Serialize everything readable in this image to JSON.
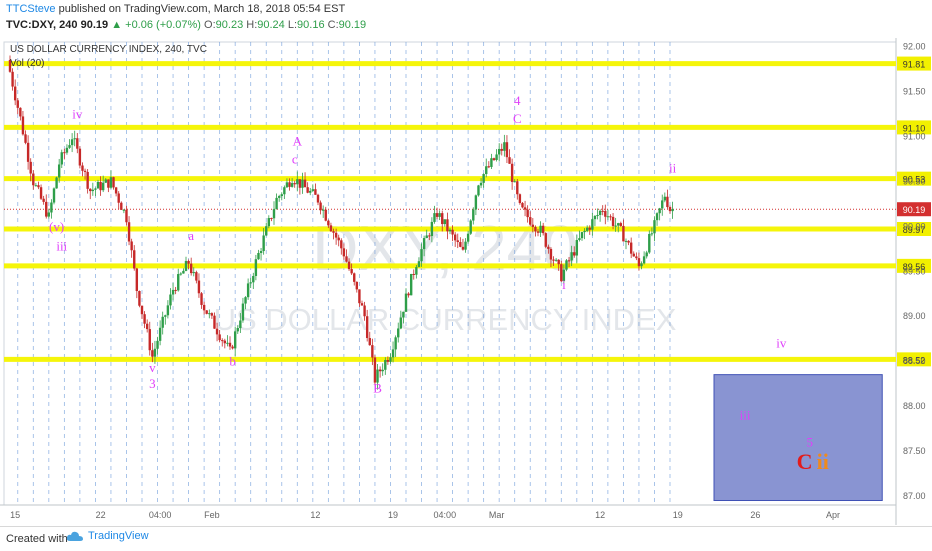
{
  "header": {
    "author": "TTCSteve",
    "published": "published on TradingView.com, March 18, 2018 05:54 EST",
    "symbol": "TVC:DXY, 240",
    "last": "90.19",
    "change": "+0.06 (+0.07%)",
    "open_label": "O:",
    "open": "90.23",
    "high_label": "H:",
    "high": "90.24",
    "low_label": "L:",
    "low": "90.16",
    "close_label": "C:",
    "close": "90.19"
  },
  "footer": {
    "created_with": "Created with",
    "brand": "TradingView"
  },
  "colors": {
    "up": "#2e9e49",
    "down": "#c62828",
    "wave": "#e040fb",
    "level_line": "#f5f50a",
    "level_box": "#f2f000",
    "box": "#5c6bc0",
    "last_price": "#d32f2f",
    "red": "#e31b1b",
    "orange": "#ef8a1d"
  },
  "chart_data": {
    "type": "candlestick",
    "title": "US DOLLAR CURRENCY INDEX, 240, TVC",
    "indicator": "Vol (20)",
    "watermark_symbol": "DXY, 240",
    "watermark_name": "US DOLLAR CURRENCY INDEX",
    "ylim": [
      86.9,
      92.05
    ],
    "y_ticks": [
      "92.00",
      "91.50",
      "91.00",
      "90.50",
      "90.00",
      "89.50",
      "89.00",
      "88.50",
      "88.00",
      "87.50",
      "87.00"
    ],
    "x_ticks": [
      "15",
      "22",
      "04:00",
      "Feb",
      "12",
      "19",
      "04:00",
      "Mar",
      "12",
      "19",
      "26",
      "Apr"
    ],
    "x_tick_index": [
      2,
      35,
      58,
      78,
      118,
      148,
      168,
      188,
      228,
      258,
      288,
      318
    ],
    "n_bars_span": 340,
    "last_price": "90.19",
    "levels": [
      "91.81",
      "91.10",
      "90.53",
      "89.97",
      "89.56",
      "88.52"
    ],
    "target_box": {
      "x_start": 272,
      "x_end": 337,
      "y_low": 86.95,
      "y_high": 88.35
    },
    "key_points": [
      {
        "x": 0,
        "y": 91.85
      },
      {
        "x": 5,
        "y": 91.2
      },
      {
        "x": 10,
        "y": 90.5
      },
      {
        "x": 16,
        "y": 90.1
      },
      {
        "x": 20,
        "y": 90.7
      },
      {
        "x": 25,
        "y": 91.0
      },
      {
        "x": 32,
        "y": 90.4
      },
      {
        "x": 40,
        "y": 90.5
      },
      {
        "x": 46,
        "y": 90.1
      },
      {
        "x": 50,
        "y": 89.3
      },
      {
        "x": 56,
        "y": 88.55
      },
      {
        "x": 64,
        "y": 89.3
      },
      {
        "x": 70,
        "y": 89.6
      },
      {
        "x": 76,
        "y": 89.1
      },
      {
        "x": 86,
        "y": 88.6
      },
      {
        "x": 96,
        "y": 89.6
      },
      {
        "x": 104,
        "y": 90.3
      },
      {
        "x": 110,
        "y": 90.55
      },
      {
        "x": 120,
        "y": 90.3
      },
      {
        "x": 130,
        "y": 89.7
      },
      {
        "x": 138,
        "y": 89.0
      },
      {
        "x": 142,
        "y": 88.3
      },
      {
        "x": 148,
        "y": 88.6
      },
      {
        "x": 158,
        "y": 89.6
      },
      {
        "x": 166,
        "y": 90.15
      },
      {
        "x": 176,
        "y": 89.7
      },
      {
        "x": 182,
        "y": 90.5
      },
      {
        "x": 192,
        "y": 90.9
      },
      {
        "x": 198,
        "y": 90.2
      },
      {
        "x": 206,
        "y": 89.95
      },
      {
        "x": 214,
        "y": 89.45
      },
      {
        "x": 222,
        "y": 89.9
      },
      {
        "x": 230,
        "y": 90.2
      },
      {
        "x": 238,
        "y": 89.9
      },
      {
        "x": 244,
        "y": 89.55
      },
      {
        "x": 250,
        "y": 90.0
      },
      {
        "x": 254,
        "y": 90.35
      },
      {
        "x": 256,
        "y": 90.19
      }
    ],
    "wave_labels": [
      {
        "text": "iv",
        "x": 26,
        "y": 91.2,
        "color": "#e040fb"
      },
      {
        "text": "(v)",
        "x": 18,
        "y": 89.95,
        "color": "#e040fb"
      },
      {
        "text": "iii",
        "x": 20,
        "y": 89.73,
        "color": "#e040fb"
      },
      {
        "text": "v",
        "x": 55,
        "y": 88.38,
        "color": "#e040fb"
      },
      {
        "text": "3",
        "x": 55,
        "y": 88.2,
        "color": "#e040fb"
      },
      {
        "text": "a",
        "x": 70,
        "y": 89.85,
        "color": "#e040fb"
      },
      {
        "text": "b",
        "x": 86,
        "y": 88.45,
        "color": "#e040fb"
      },
      {
        "text": "A",
        "x": 111,
        "y": 90.9,
        "color": "#e040fb"
      },
      {
        "text": "c",
        "x": 110,
        "y": 90.7,
        "color": "#e040fb"
      },
      {
        "text": "B",
        "x": 142,
        "y": 88.15,
        "color": "#e040fb"
      },
      {
        "text": "4",
        "x": 196,
        "y": 91.35,
        "color": "#e040fb"
      },
      {
        "text": "C",
        "x": 196,
        "y": 91.15,
        "color": "#e040fb"
      },
      {
        "text": "i",
        "x": 214,
        "y": 89.3,
        "color": "#e040fb"
      },
      {
        "text": "ii",
        "x": 256,
        "y": 90.6,
        "color": "#e040fb"
      },
      {
        "text": "iv",
        "x": 298,
        "y": 88.65,
        "color": "#e040fb"
      },
      {
        "text": "iii",
        "x": 284,
        "y": 87.85,
        "color": "#e040fb"
      },
      {
        "text": "5",
        "x": 309,
        "y": 87.55,
        "color": "#e040fb"
      },
      {
        "text": "C",
        "x": 307,
        "y": 87.3,
        "color": "#e31b1b"
      },
      {
        "text": "ii",
        "x": 314,
        "y": 87.3,
        "color": "#ef8a1d"
      }
    ]
  }
}
